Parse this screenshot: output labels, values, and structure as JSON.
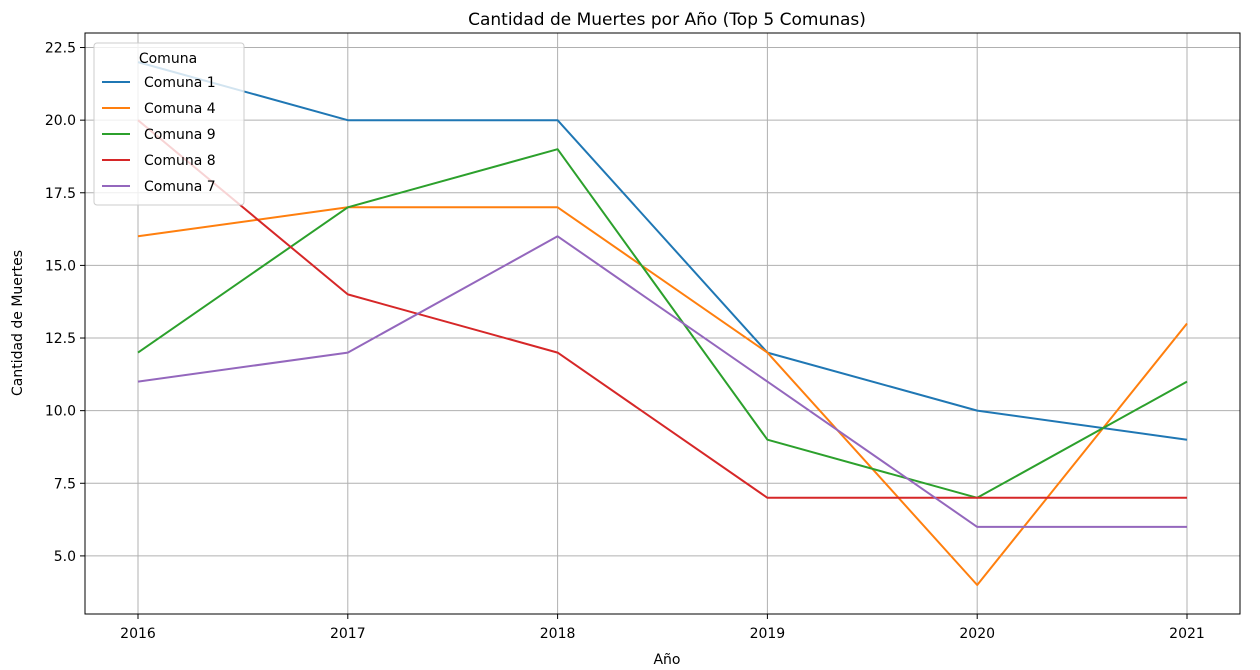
{
  "chart_data": {
    "type": "line",
    "title": "Cantidad de Muertes por Año (Top 5 Comunas)",
    "xlabel": "Año",
    "ylabel": "Cantidad de Muertes",
    "x": [
      2016,
      2017,
      2018,
      2019,
      2020,
      2021
    ],
    "xtick_labels": [
      "2016",
      "2017",
      "2018",
      "2019",
      "2020",
      "2021"
    ],
    "ylim": [
      3.0,
      23.0
    ],
    "yticks": [
      5.0,
      7.5,
      10.0,
      12.5,
      15.0,
      17.5,
      20.0,
      22.5
    ],
    "ytick_labels": [
      "5.0",
      "7.5",
      "10.0",
      "12.5",
      "15.0",
      "17.5",
      "20.0",
      "22.5"
    ],
    "grid": true,
    "legend": {
      "title": "Comuna",
      "placement": "upper-left"
    },
    "series": [
      {
        "name": "Comuna 1",
        "color": "#1f77b4",
        "values": [
          22,
          20,
          20,
          12,
          10,
          9
        ]
      },
      {
        "name": "Comuna 4",
        "color": "#ff7f0e",
        "values": [
          16,
          17,
          17,
          12,
          4,
          13
        ]
      },
      {
        "name": "Comuna 9",
        "color": "#2ca02c",
        "values": [
          12,
          17,
          19,
          9,
          7,
          11
        ]
      },
      {
        "name": "Comuna 8",
        "color": "#d62728",
        "values": [
          20,
          14,
          12,
          7,
          7,
          7
        ]
      },
      {
        "name": "Comuna 7",
        "color": "#9467bd",
        "values": [
          11,
          12,
          16,
          11,
          6,
          6
        ]
      }
    ]
  }
}
